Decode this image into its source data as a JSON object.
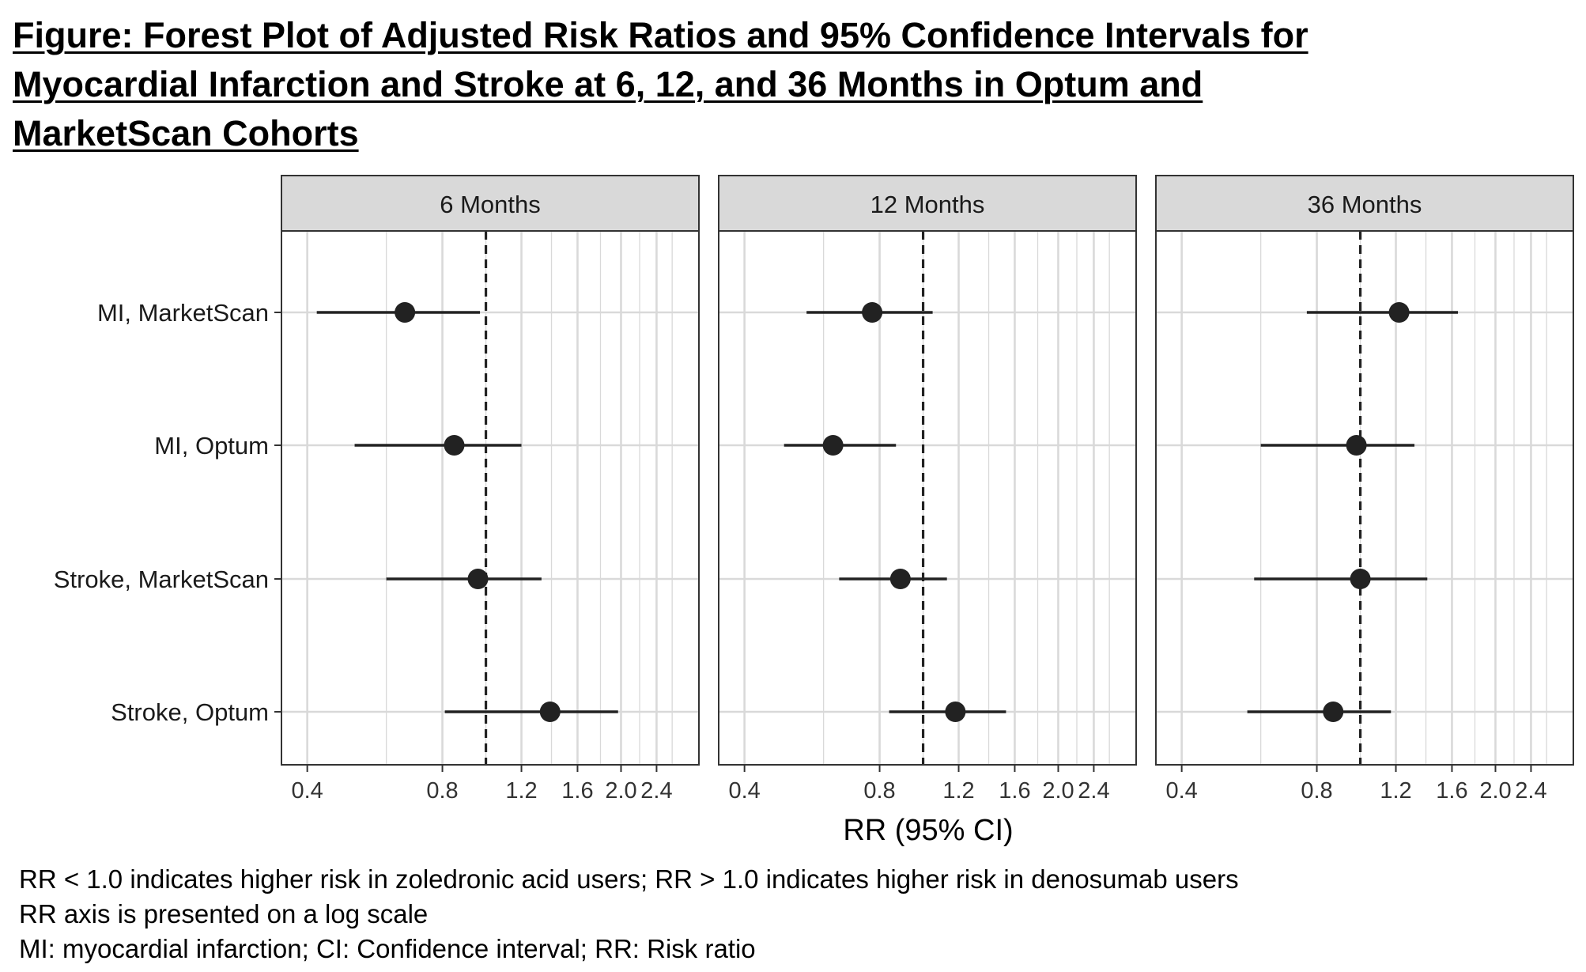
{
  "title_lines": [
    "Figure: Forest Plot of Adjusted Risk Ratios and 95% Confidence Intervals for",
    "Myocardial Infarction and Stroke at 6, 12, and 36 Months in Optum and",
    "MarketScan Cohorts"
  ],
  "notes": [
    "RR < 1.0 indicates higher risk in zoledronic acid users; RR > 1.0 indicates higher risk in denosumab users",
    "RR axis is presented on a log scale",
    "MI: myocardial infarction; CI: Confidence interval; RR: Risk ratio"
  ],
  "colors": {
    "strip_fill": "#d9d9d9",
    "panel_border": "#333333",
    "grid": "#d9d9d9",
    "point": "#222222",
    "reference_line": "#222222"
  },
  "chart_data": {
    "type": "scatter",
    "subtype": "forest plot with facets",
    "xlabel": "RR (95% CI)",
    "ylabel": "",
    "x_scale": "log",
    "xlim": [
      0.38,
      2.75
    ],
    "x_ticks": [
      0.4,
      0.8,
      1.2,
      1.6,
      2.0,
      2.4
    ],
    "x_tick_labels": [
      "0.4",
      "0.8",
      "1.2",
      "1.6",
      "2.0",
      "2.4"
    ],
    "x_minor_grid": [
      0.6,
      1.0,
      1.4,
      1.8,
      2.2,
      2.6
    ],
    "reference_line": 1.0,
    "grid": true,
    "legend": "none",
    "categories": [
      "MI, MarketScan",
      "MI, Optum",
      "Stroke, MarketScan",
      "Stroke, Optum"
    ],
    "panels": [
      {
        "label": "6 Months",
        "points": [
          {
            "category": "MI, MarketScan",
            "rr": 0.66,
            "lower": 0.42,
            "upper": 0.97
          },
          {
            "category": "MI, Optum",
            "rr": 0.85,
            "lower": 0.51,
            "upper": 1.2
          },
          {
            "category": "Stroke, MarketScan",
            "rr": 0.96,
            "lower": 0.6,
            "upper": 1.33
          },
          {
            "category": "Stroke, Optum",
            "rr": 1.39,
            "lower": 0.81,
            "upper": 1.97
          }
        ]
      },
      {
        "label": "12 Months",
        "points": [
          {
            "category": "MI, MarketScan",
            "rr": 0.77,
            "lower": 0.55,
            "upper": 1.05
          },
          {
            "category": "MI, Optum",
            "rr": 0.63,
            "lower": 0.49,
            "upper": 0.87
          },
          {
            "category": "Stroke, MarketScan",
            "rr": 0.89,
            "lower": 0.65,
            "upper": 1.13
          },
          {
            "category": "Stroke, Optum",
            "rr": 1.18,
            "lower": 0.84,
            "upper": 1.53
          }
        ]
      },
      {
        "label": "36 Months",
        "points": [
          {
            "category": "MI, MarketScan",
            "rr": 1.22,
            "lower": 0.76,
            "upper": 1.65
          },
          {
            "category": "MI, Optum",
            "rr": 0.98,
            "lower": 0.6,
            "upper": 1.32
          },
          {
            "category": "Stroke, MarketScan",
            "rr": 1.0,
            "lower": 0.58,
            "upper": 1.41
          },
          {
            "category": "Stroke, Optum",
            "rr": 0.87,
            "lower": 0.56,
            "upper": 1.17
          }
        ]
      }
    ]
  }
}
